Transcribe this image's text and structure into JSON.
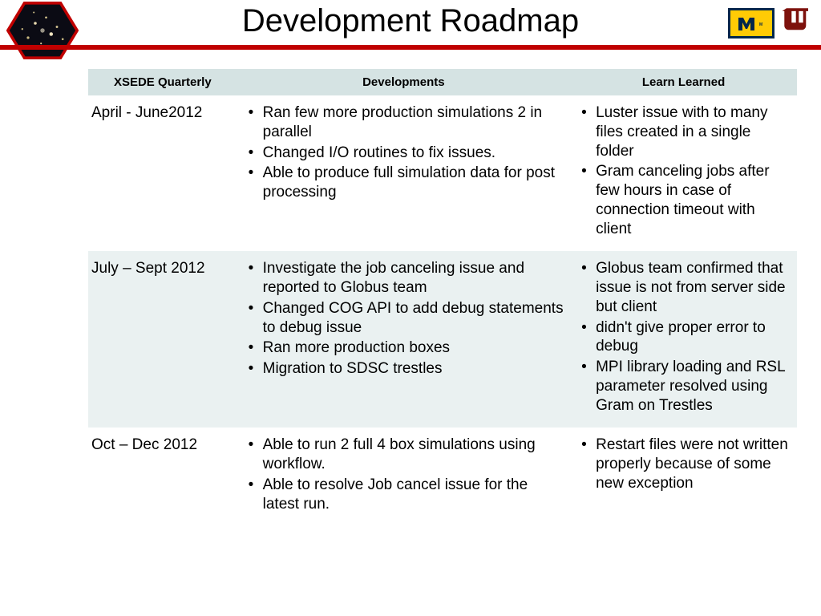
{
  "title": "Development Roadmap",
  "logos": {
    "michigan": "MICHIGAN",
    "iu": "IU"
  },
  "columns": {
    "quarterly": "XSEDE Quarterly",
    "developments": "Developments",
    "learned": "Learn Learned"
  },
  "rows": [
    {
      "quarter": "April - June2012",
      "dev": [
        "Ran few more production simulations 2 in parallel",
        "Changed I/O routines to fix issues.",
        "Able to produce full simulation data for post processing"
      ],
      "learn": [
        "Luster issue with to many files created in a single folder",
        "Gram canceling jobs after few hours in case of connection timeout with client"
      ]
    },
    {
      "quarter": "July – Sept 2012",
      "dev": [
        "Investigate the job canceling issue and reported to Globus team",
        "Changed COG API to add debug statements to debug issue",
        "Ran more production boxes",
        "Migration to SDSC trestles"
      ],
      "learn": [
        "Globus team confirmed that issue is not from server side but client",
        "didn't give proper error to debug",
        "MPI library loading and RSL parameter resolved using Gram on Trestles"
      ]
    },
    {
      "quarter": "Oct – Dec 2012",
      "dev": [
        "Able to run 2 full 4 box simulations using workflow.",
        "Able to resolve Job cancel issue for the latest run."
      ],
      "learn": [
        "Restart files were not written properly because of some new exception"
      ]
    }
  ],
  "hex": {
    "border_color": "#c00000",
    "border_width": 4,
    "fill": "#0b0b14"
  }
}
